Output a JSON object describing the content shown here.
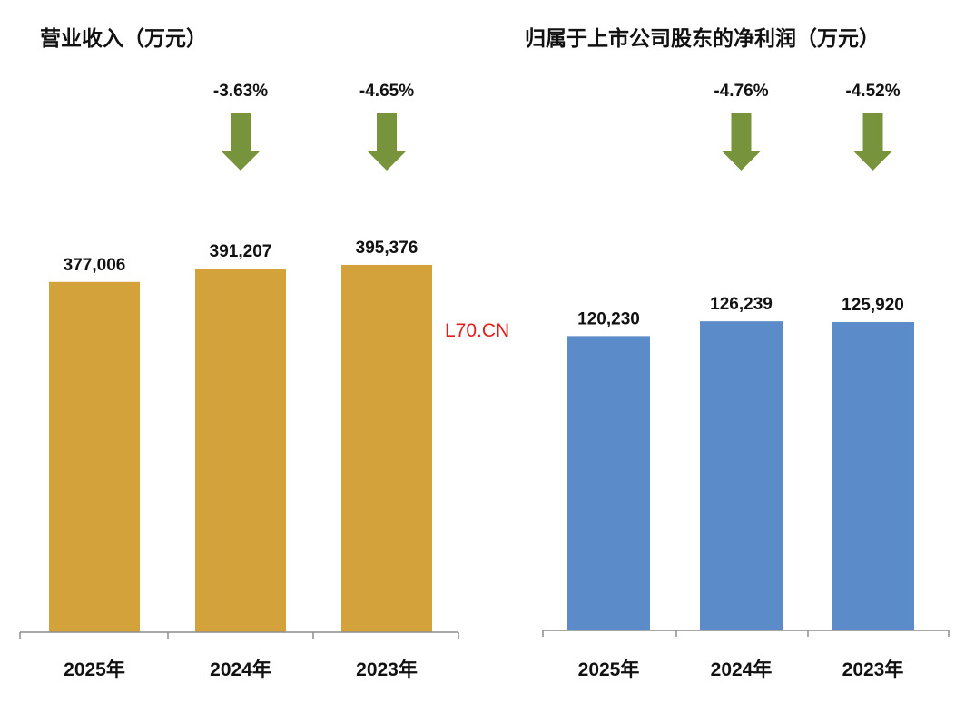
{
  "watermark": "L70.CN",
  "chart_data": [
    {
      "type": "bar",
      "title": "营业收入（万元）",
      "categories": [
        "2025年",
        "2024年",
        "2023年"
      ],
      "values": [
        377006,
        391207,
        395376
      ],
      "data_labels": [
        "377,006",
        "391,207",
        "395,376"
      ],
      "change_labels": [
        "",
        "-3.63%",
        "-4.65%"
      ],
      "ylim": [
        0,
        450000
      ],
      "grid": false,
      "bar_color": "#d4a23a",
      "arrow_color": "#77933c",
      "arrow_icon": "arrow-down-icon"
    },
    {
      "type": "bar",
      "title": "归属于上市公司股东的净利润（万元）",
      "categories": [
        "2025年",
        "2024年",
        "2023年"
      ],
      "values": [
        120230,
        126239,
        125920
      ],
      "data_labels": [
        "120,230",
        "126,239",
        "125,920"
      ],
      "change_labels": [
        "",
        "-4.76%",
        "-4.52%"
      ],
      "ylim": [
        0,
        150000
      ],
      "grid": false,
      "bar_color": "#5b8bc9",
      "arrow_color": "#77933c",
      "arrow_icon": "arrow-down-icon"
    }
  ]
}
